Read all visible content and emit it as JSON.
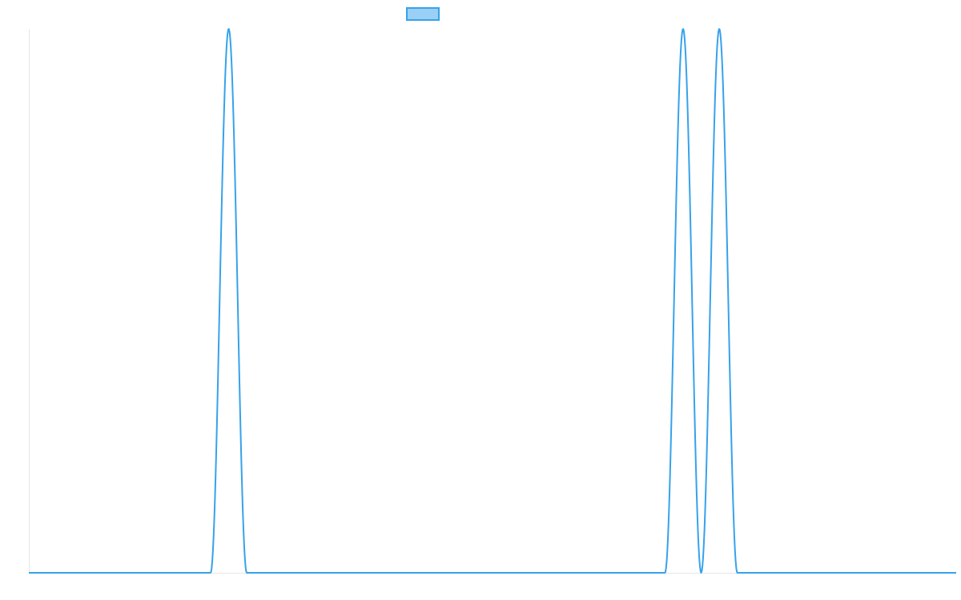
{
  "chart_data": {
    "type": "line",
    "title": "",
    "xlabel": "",
    "ylabel": "",
    "legend": {
      "placement": "top-center",
      "entries": [
        {
          "label": ""
        }
      ]
    },
    "grid": false,
    "xlim": [
      0,
      1000
    ],
    "ylim": [
      0,
      1
    ],
    "series": [
      {
        "color": "#36a2eb",
        "fill_color": "#9ad0f5",
        "pulses": [
          {
            "start": 196,
            "end": 235,
            "peak": 1
          },
          {
            "start": 686,
            "end": 725,
            "peak": 1
          },
          {
            "start": 725,
            "end": 764,
            "peak": 1
          }
        ]
      }
    ]
  }
}
